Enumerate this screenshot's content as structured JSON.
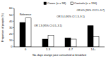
{
  "chart_data": {
    "type": "bar",
    "x_label": "No. days orange juice consumed at breakfast",
    "y_label": "Proportion of people (%)",
    "categories": [
      "0",
      "1-3",
      "4-7",
      "14+"
    ],
    "series": [
      {
        "name": "Cases (n = 98)",
        "color": "#000000",
        "values": [
          38,
          12,
          14,
          33
        ]
      },
      {
        "name": "Controls (n = 196)",
        "color": "#ffffff",
        "values": [
          45,
          18,
          12,
          16
        ]
      }
    ],
    "annotations": [
      "Reference",
      "OR 1.3 (95% CI 0.5–3.1)",
      "OR 3.4 (95% CI 1.3–9.1)",
      "OR 4.5 (95% CI 2.1–9.7)"
    ],
    "ylim": [
      0,
      60
    ],
    "yticks": [
      0,
      10,
      20,
      30,
      40,
      50,
      60
    ],
    "legend": "top"
  }
}
